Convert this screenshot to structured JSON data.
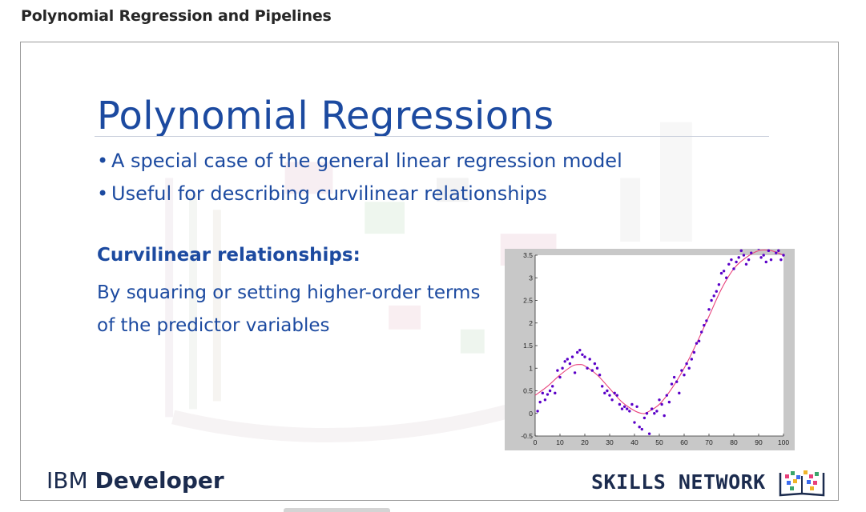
{
  "page": {
    "heading": "Polynomial Regression and Pipelines"
  },
  "slide": {
    "title": "Polynomial Regressions",
    "bullets": [
      "A special case of the general linear regression model",
      "Useful for describing curvilinear relationships"
    ],
    "bullet_glyph": "•",
    "subheading": "Curvilinear relationships:",
    "subtext_lines": [
      "By squaring or setting higher-order terms",
      "of the predictor variables"
    ],
    "footer_brand_prefix": "IBM ",
    "footer_brand_bold": "Developer",
    "skills_network": "SKILLS NETWORK"
  },
  "colors": {
    "slide_text": "#1c4aa0",
    "scatter_points": "#5a00c8",
    "fit_curve": "#e8407a",
    "chart_side_bar": "#c8c8c8"
  },
  "chart_data": {
    "type": "scatter",
    "xlim": [
      0,
      100
    ],
    "ylim": [
      -0.5,
      3.5
    ],
    "x_ticks": [
      0,
      10,
      20,
      30,
      40,
      50,
      60,
      70,
      80,
      90,
      100
    ],
    "y_ticks": [
      -0.5,
      0,
      0.5,
      1,
      1.5,
      2,
      2.5,
      3,
      3.5
    ],
    "grid": false,
    "series": [
      {
        "kind": "points",
        "x": [
          1,
          2,
          3,
          4,
          5,
          6,
          7,
          8,
          9,
          10,
          11,
          12,
          13,
          14,
          15,
          16,
          17,
          18,
          19,
          20,
          21,
          22,
          23,
          24,
          25,
          26,
          27,
          28,
          29,
          30,
          31,
          32,
          33,
          34,
          35,
          36,
          37,
          38,
          39,
          40,
          41,
          42,
          43,
          44,
          45,
          46,
          47,
          48,
          49,
          50,
          51,
          52,
          53,
          54,
          55,
          56,
          57,
          58,
          59,
          60,
          61,
          62,
          63,
          64,
          65,
          66,
          67,
          68,
          69,
          70,
          71,
          72,
          73,
          74,
          75,
          76,
          77,
          78,
          79,
          80,
          81,
          82,
          83,
          84,
          85,
          86,
          87,
          88,
          89,
          90,
          91,
          92,
          93,
          94,
          95,
          96,
          97,
          98,
          99,
          100
        ],
        "y": [
          0.05,
          0.25,
          0.45,
          0.3,
          0.42,
          0.5,
          0.6,
          0.45,
          0.95,
          0.8,
          1.0,
          1.15,
          1.2,
          1.1,
          1.25,
          0.9,
          1.35,
          1.4,
          1.3,
          1.25,
          1.0,
          1.2,
          0.95,
          1.1,
          1.0,
          0.85,
          0.6,
          0.45,
          0.5,
          0.4,
          0.3,
          0.45,
          0.4,
          0.2,
          0.1,
          0.15,
          0.1,
          0.05,
          0.2,
          -0.2,
          0.15,
          -0.3,
          -0.35,
          -0.1,
          0.0,
          -0.45,
          0.1,
          0.0,
          0.05,
          0.3,
          0.2,
          -0.05,
          0.4,
          0.25,
          0.65,
          0.8,
          0.7,
          0.45,
          0.95,
          0.85,
          1.1,
          1.0,
          1.2,
          1.35,
          1.55,
          1.6,
          1.8,
          1.95,
          2.05,
          2.3,
          2.5,
          2.6,
          2.7,
          2.85,
          3.1,
          3.15,
          3.0,
          3.3,
          3.4,
          3.2,
          3.35,
          3.45,
          3.6,
          3.5,
          3.3,
          3.4,
          3.55,
          3.7,
          3.75,
          3.65,
          3.45,
          3.5,
          3.35,
          3.6,
          3.4,
          3.7,
          3.55,
          3.6,
          3.4,
          3.5
        ]
      },
      {
        "kind": "fit-curve",
        "x": [
          0,
          5,
          10,
          15,
          18,
          20,
          25,
          30,
          35,
          40,
          43,
          45,
          50,
          55,
          60,
          65,
          70,
          75,
          80,
          85,
          90,
          95,
          100
        ],
        "y": [
          0.4,
          0.6,
          0.85,
          1.05,
          1.08,
          1.05,
          0.85,
          0.55,
          0.25,
          0.06,
          0.0,
          0.02,
          0.2,
          0.55,
          1.0,
          1.55,
          2.15,
          2.75,
          3.2,
          3.45,
          3.6,
          3.6,
          3.5
        ]
      }
    ]
  }
}
